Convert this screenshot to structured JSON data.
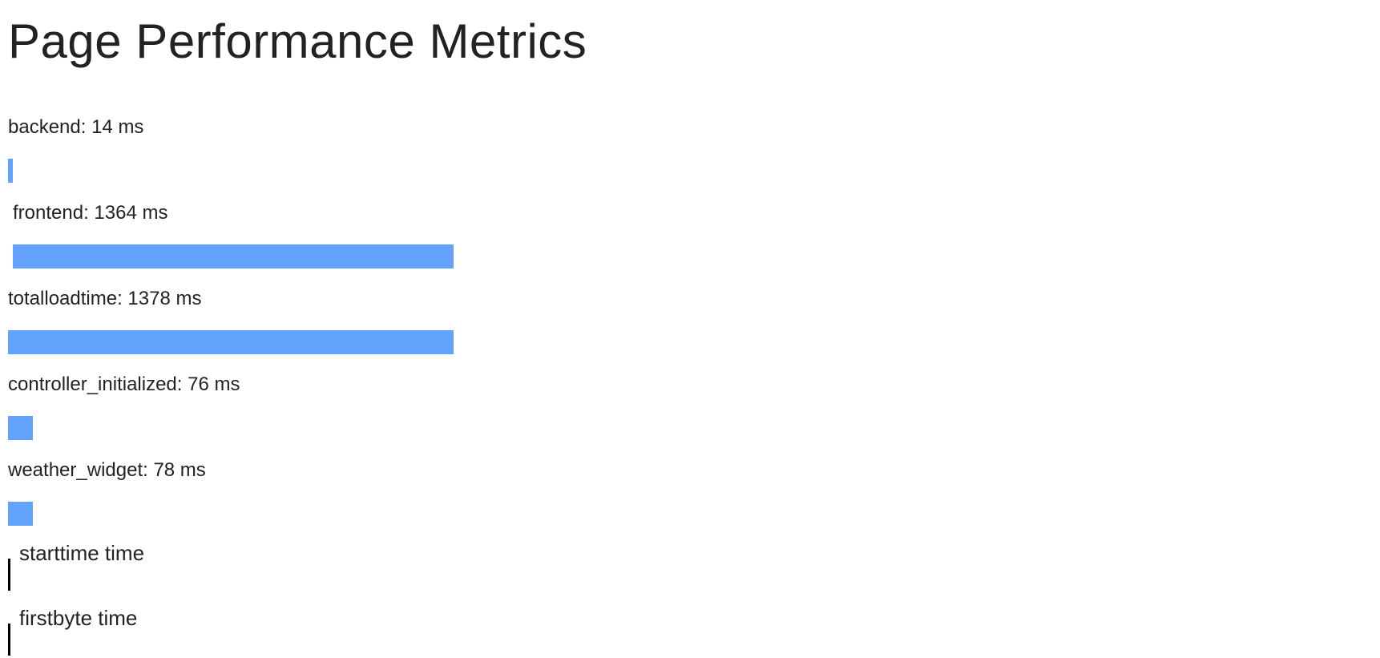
{
  "page": {
    "title": "Page Performance Metrics"
  },
  "chart_data": {
    "type": "bar",
    "unit": "ms",
    "bar_color": "#63a3fd",
    "marker_color": "#000000",
    "metrics": [
      {
        "key": "backend",
        "value": 14,
        "offset": 0,
        "label": "backend: 14 ms"
      },
      {
        "key": "frontend",
        "value": 1364,
        "offset": 14,
        "label": "frontend: 1364 ms"
      },
      {
        "key": "totalloadtime",
        "value": 1378,
        "offset": 0,
        "label": "totalloadtime: 1378 ms"
      },
      {
        "key": "controller_initialized",
        "value": 76,
        "offset": 0,
        "label": "controller_initialized: 76 ms"
      },
      {
        "key": "weather_widget",
        "value": 78,
        "offset": 0,
        "label": "weather_widget: 78 ms"
      }
    ],
    "markers": [
      {
        "key": "starttime",
        "value": 0,
        "label": "starttime time"
      },
      {
        "key": "firstbyte",
        "value": 14,
        "label": "firstbyte time"
      }
    ],
    "xlim": [
      0,
      1378
    ]
  }
}
